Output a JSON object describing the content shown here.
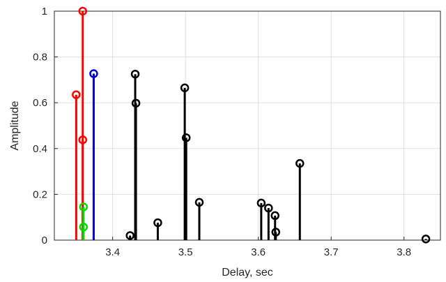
{
  "chart_data": {
    "type": "stem",
    "xlabel": "Delay, sec",
    "ylabel": "Amplitude",
    "xlim": [
      3.32,
      3.85
    ],
    "ylim": [
      0,
      1
    ],
    "xticks": [
      3.4,
      3.5,
      3.6,
      3.7,
      3.8
    ],
    "xtick_labels": [
      "3.4",
      "3.5",
      "3.6",
      "3.7",
      "3.8"
    ],
    "yticks": [
      0,
      0.2,
      0.4,
      0.6,
      0.8,
      1
    ],
    "ytick_labels": [
      "0",
      "0.2",
      "0.4",
      "0.6",
      "0.8",
      "1"
    ],
    "grid": true,
    "series": [
      {
        "color": "#ff0000",
        "points": [
          {
            "x": 3.35,
            "y": 0.635
          },
          {
            "x": 3.359,
            "y": 1.0
          },
          {
            "x": 3.359,
            "y": 0.438
          }
        ]
      },
      {
        "color": "#00dd00",
        "points": [
          {
            "x": 3.36,
            "y": 0.145
          },
          {
            "x": 3.36,
            "y": 0.057
          }
        ]
      },
      {
        "color": "#0000cc",
        "points": [
          {
            "x": 3.374,
            "y": 0.727
          }
        ]
      },
      {
        "color": "#000000",
        "points": [
          {
            "x": 3.424,
            "y": 0.02
          },
          {
            "x": 3.431,
            "y": 0.725
          },
          {
            "x": 3.432,
            "y": 0.598
          },
          {
            "x": 3.462,
            "y": 0.076
          },
          {
            "x": 3.499,
            "y": 0.665
          },
          {
            "x": 3.501,
            "y": 0.447
          },
          {
            "x": 3.519,
            "y": 0.165
          },
          {
            "x": 3.604,
            "y": 0.162
          },
          {
            "x": 3.614,
            "y": 0.14
          },
          {
            "x": 3.623,
            "y": 0.107
          },
          {
            "x": 3.624,
            "y": 0.035
          },
          {
            "x": 3.657,
            "y": 0.335
          },
          {
            "x": 3.83,
            "y": 0.005
          }
        ]
      }
    ]
  }
}
